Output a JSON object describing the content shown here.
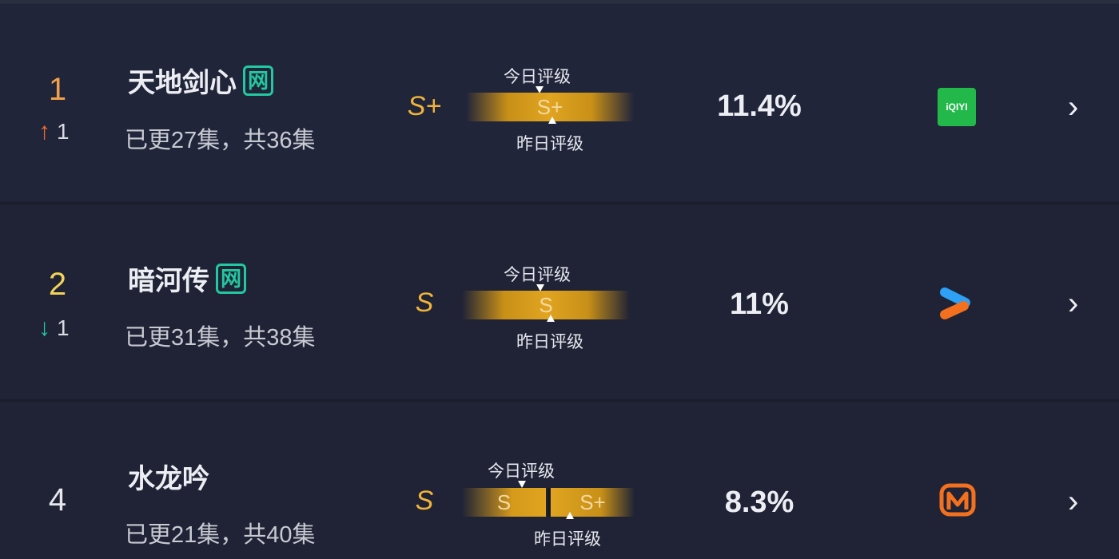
{
  "today_label": "今日评级",
  "yesterday_label": "昨日评级",
  "rows": [
    {
      "rank": "1",
      "rank_color": "#f0a04a",
      "change": "1",
      "change_direction": "up",
      "change_icon": "arrow-up-icon",
      "change_color": "#ee6a2e",
      "title": "天地剑心",
      "badge": "网",
      "episodes": "已更27集，共36集",
      "grade": "S+",
      "today_grade": "S+",
      "yesterday_grade": "S+",
      "share": "11.4%",
      "platform": "iqiyi",
      "platform_logo_text": "iQIYI"
    },
    {
      "rank": "2",
      "rank_color": "#f2d25a",
      "change": "1",
      "change_direction": "down",
      "change_icon": "arrow-down-icon",
      "change_color": "#22c8a0",
      "title": "暗河传",
      "badge": "网",
      "episodes": "已更31集，共38集",
      "grade": "S",
      "today_grade": "S",
      "yesterday_grade": "S",
      "share": "11%",
      "platform": "youku"
    },
    {
      "rank": "4",
      "rank_color": "#e6e8ee",
      "title": "水龙吟",
      "episodes": "已更21集，共40集",
      "grade": "S",
      "today_grade": "S",
      "yesterday_grade": "S+",
      "share": "8.3%",
      "platform": "mango-tv"
    }
  ]
}
